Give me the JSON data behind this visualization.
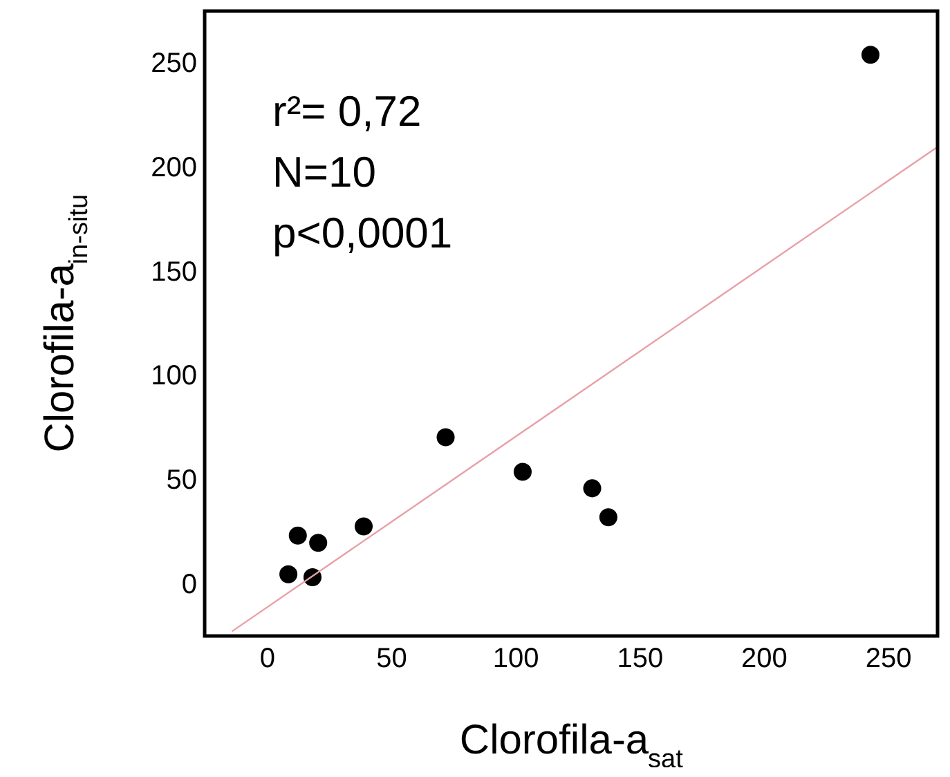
{
  "chart_data": {
    "type": "scatter",
    "xlabel": "Clorofila-a$_{sat}$",
    "ylabel": "Clorofila-a$_{in-situ}$",
    "annotations": [
      "r²= 0,72",
      "N=10",
      "p<0,0001"
    ],
    "xlim": [
      -25,
      270
    ],
    "ylim": [
      -25,
      275
    ],
    "xticks": [
      0,
      50,
      100,
      150,
      200,
      250
    ],
    "yticks": [
      0,
      50,
      100,
      150,
      200,
      250
    ],
    "grid": false,
    "series": [
      {
        "marker": "circle",
        "color": "#000000",
        "x": [
          243,
          72,
          103,
          131,
          137.5,
          39,
          12.5,
          20.7,
          8.7,
          18.4
        ],
        "values": [
          254,
          70.4,
          53.8,
          45.9,
          32,
          27.6,
          23.2,
          19.7,
          4.6,
          3.2
        ]
      },
      {
        "type": "line",
        "color": "#e8a0a8",
        "x": [
          -14,
          270
        ],
        "values": [
          -22.8,
          209.8
        ]
      }
    ]
  }
}
